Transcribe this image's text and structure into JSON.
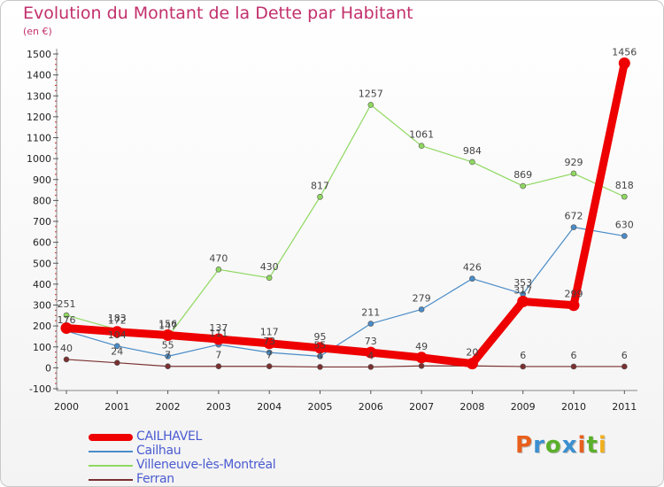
{
  "title": "Evolution du Montant de la Dette par Habitant",
  "unit_label": "(en €)",
  "logo": {
    "letters": [
      "P",
      "r",
      "o",
      "x",
      "i",
      "t",
      "i"
    ],
    "colors": [
      "#e8601c",
      "#3a8fd0",
      "#5ab02a",
      "#3a8fd0",
      "#e8601c",
      "#5ab02a",
      "#f0b020"
    ]
  },
  "chart_data": {
    "type": "line",
    "title": "Evolution du Montant de la Dette par Habitant",
    "ylabel": "(en €)",
    "ylim": [
      -100,
      1500
    ],
    "yticks": [
      -100,
      0,
      100,
      200,
      300,
      400,
      500,
      600,
      700,
      800,
      900,
      1000,
      1100,
      1200,
      1300,
      1400,
      1500
    ],
    "x": [
      "2000",
      "2001",
      "2002",
      "2003",
      "2004",
      "2005",
      "2006",
      "2007",
      "2008",
      "2009",
      "2010",
      "2011"
    ],
    "grid": false,
    "legend_position": "bottom-left",
    "series": [
      {
        "name": "CAILHAVEL",
        "color": "#ee0000",
        "width": 9,
        "values": [
          190,
          172,
          156,
          137,
          117,
          95,
          73,
          49,
          20,
          317,
          299,
          1456
        ],
        "labels": [
          "",
          "172",
          "156",
          "137",
          "117",
          "95",
          "73",
          "49",
          "20",
          "317",
          "299",
          "1456"
        ]
      },
      {
        "name": "Cailhau",
        "color": "#4a8cc8",
        "width": 1.2,
        "values": [
          176,
          104,
          55,
          111,
          73,
          55,
          211,
          279,
          426,
          353,
          672,
          630
        ],
        "labels": [
          "176",
          "104",
          "55",
          "111",
          "73",
          "55",
          "211",
          "279",
          "426",
          "353",
          "672",
          "630"
        ]
      },
      {
        "name": "Villeneuve-lès-Montréal",
        "color": "#8fd860",
        "width": 1.2,
        "values": [
          251,
          183,
          147,
          470,
          430,
          817,
          1257,
          1061,
          984,
          869,
          929,
          818
        ],
        "labels": [
          "251",
          "183",
          "147",
          "470",
          "430",
          "817",
          "1257",
          "1061",
          "984",
          "869",
          "929",
          "818"
        ]
      },
      {
        "name": "Ferran",
        "color": "#7a3030",
        "width": 1.2,
        "values": [
          40,
          24,
          7,
          7,
          7,
          4,
          4,
          9,
          9,
          6,
          6,
          6
        ],
        "labels": [
          "40",
          "24",
          "7",
          "7",
          "7",
          "4",
          "4",
          "",
          "",
          "6",
          "6",
          "6"
        ]
      }
    ]
  }
}
